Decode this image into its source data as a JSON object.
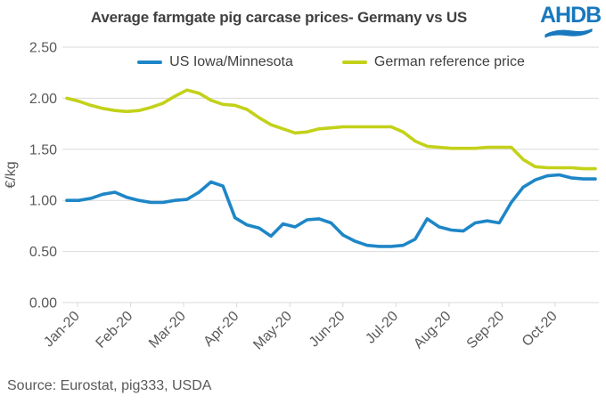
{
  "header": {
    "title": "Average farmgate pig carcase prices- Germany vs US",
    "logo_text": "AHDB"
  },
  "source": {
    "text": "Source: Eurostat, pig333, USDA"
  },
  "colors": {
    "logo_blue": "#1878be",
    "title_text": "#3f3f3f",
    "legend_text": "#404040"
  },
  "chart_data": {
    "type": "line",
    "title": "Average farmgate pig carcase prices- Germany vs US",
    "xlabel": "",
    "ylabel": "€/kg",
    "ylim": [
      0,
      2.5
    ],
    "grid": "horizontal",
    "legend_position": "top",
    "x_unit": "weekly points from Jan-20 to late Oct-20",
    "xticks": [
      "Jan-20",
      "Feb-20",
      "Mar-20",
      "Apr-20",
      "May-20",
      "Jun-20",
      "Jul-20",
      "Aug-20",
      "Sep-20",
      "Oct-20"
    ],
    "yticks": {
      "values": [
        0,
        0.5,
        1.0,
        1.5,
        2.0,
        2.5
      ],
      "labels": [
        "0.00",
        "0.50",
        "1.00",
        "1.50",
        "2.00",
        "2.50"
      ]
    },
    "colors": {
      "grid": "#d9d9d9",
      "axis_text": "#595959"
    },
    "series": [
      {
        "name": "US Iowa/Minnesota",
        "color": "#1e86c7",
        "values": [
          1.0,
          1.0,
          1.02,
          1.06,
          1.08,
          1.03,
          1.0,
          0.98,
          0.98,
          1.0,
          1.01,
          1.08,
          1.18,
          1.14,
          0.83,
          0.76,
          0.73,
          0.65,
          0.77,
          0.74,
          0.81,
          0.82,
          0.78,
          0.66,
          0.6,
          0.56,
          0.55,
          0.55,
          0.56,
          0.62,
          0.82,
          0.74,
          0.71,
          0.7,
          0.78,
          0.8,
          0.78,
          0.98,
          1.13,
          1.2,
          1.24,
          1.25,
          1.22,
          1.21,
          1.21
        ]
      },
      {
        "name": "German reference price",
        "color": "#c3d119",
        "values": [
          2.0,
          1.97,
          1.93,
          1.9,
          1.88,
          1.87,
          1.88,
          1.91,
          1.95,
          2.02,
          2.08,
          2.05,
          1.98,
          1.94,
          1.93,
          1.89,
          1.81,
          1.74,
          1.7,
          1.66,
          1.67,
          1.7,
          1.71,
          1.72,
          1.72,
          1.72,
          1.72,
          1.72,
          1.67,
          1.58,
          1.53,
          1.52,
          1.51,
          1.51,
          1.51,
          1.52,
          1.52,
          1.52,
          1.4,
          1.33,
          1.32,
          1.32,
          1.32,
          1.31,
          1.31
        ]
      }
    ]
  }
}
